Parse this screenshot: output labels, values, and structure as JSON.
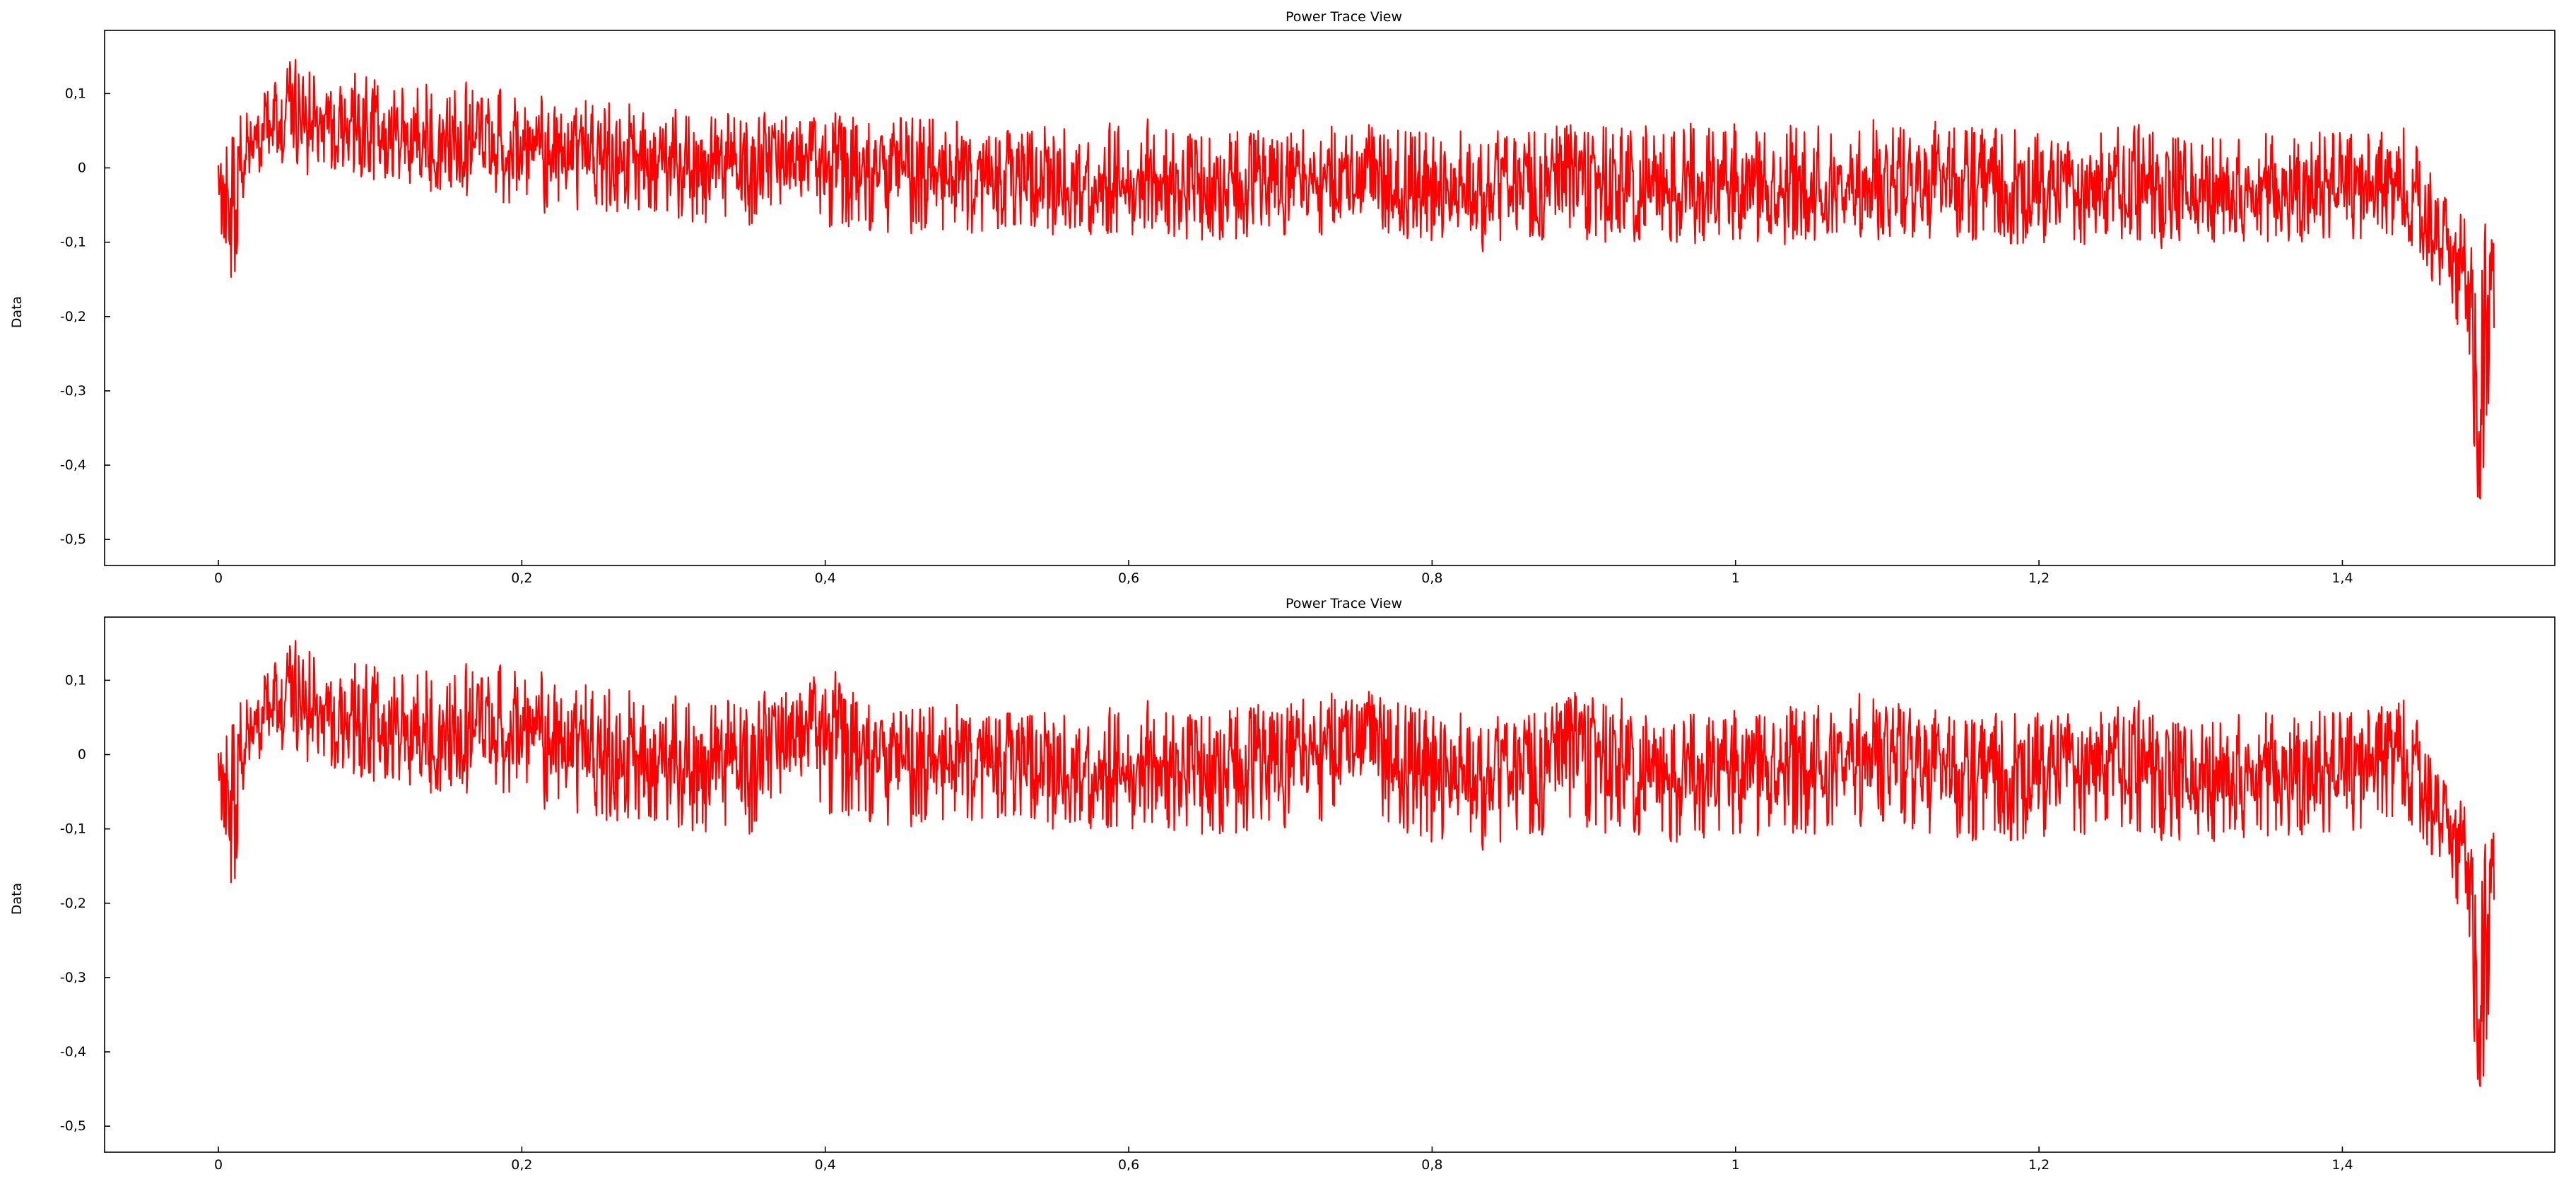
{
  "chart_data": [
    {
      "type": "line",
      "title": "Power Trace View",
      "xlabel": "",
      "ylabel": "Data",
      "xlim": [
        -0.075,
        1.54
      ],
      "ylim": [
        -0.535,
        0.185
      ],
      "grid": false,
      "color": "#ff0000",
      "xticks": [
        0,
        0.2,
        0.4,
        0.6,
        0.8,
        1,
        1.2,
        1.4
      ],
      "xtick_labels": [
        "0",
        "0,2",
        "0,4",
        "0,6",
        "0,8",
        "1",
        "1,2",
        "1,4"
      ],
      "yticks": [
        0.1,
        0,
        -0.1,
        -0.2,
        -0.3,
        -0.4,
        -0.5
      ],
      "ytick_labels": [
        "0,1",
        "0",
        "-0,1",
        "-0,2",
        "-0,3",
        "-0,4",
        "-0,5"
      ],
      "series": [
        {
          "x": [
            0,
            0.01,
            0.02,
            0.04,
            0.06,
            0.08,
            0.1,
            0.12,
            0.15,
            0.2,
            0.25,
            0.3,
            0.35,
            0.4,
            0.45,
            0.5,
            0.55,
            0.6,
            0.65,
            0.7,
            0.75,
            0.8,
            0.85,
            0.9,
            0.95,
            1.0,
            1.05,
            1.1,
            1.15,
            1.2,
            1.25,
            1.3,
            1.35,
            1.4,
            1.44,
            1.46,
            1.47,
            1.48,
            1.485,
            1.49,
            1.495,
            1.5
          ],
          "y": [
            -0.02,
            -0.05,
            0.04,
            0.07,
            0.07,
            0.07,
            0.05,
            0.04,
            0.03,
            0.03,
            0.02,
            0.01,
            0.0,
            0.0,
            -0.01,
            -0.01,
            -0.02,
            -0.02,
            -0.03,
            -0.02,
            -0.02,
            -0.03,
            -0.03,
            -0.02,
            -0.03,
            -0.03,
            -0.03,
            -0.02,
            -0.02,
            -0.03,
            -0.02,
            -0.03,
            -0.03,
            -0.02,
            -0.02,
            -0.08,
            -0.11,
            -0.14,
            -0.22,
            -0.38,
            -0.2,
            -0.1
          ],
          "lower": [
            -0.1,
            -0.16,
            -0.02,
            0.0,
            -0.01,
            0.0,
            -0.02,
            -0.03,
            -0.04,
            -0.05,
            -0.06,
            -0.07,
            -0.08,
            -0.08,
            -0.09,
            -0.09,
            -0.09,
            -0.09,
            -0.1,
            -0.09,
            -0.09,
            -0.1,
            -0.1,
            -0.1,
            -0.1,
            -0.1,
            -0.1,
            -0.09,
            -0.1,
            -0.11,
            -0.1,
            -0.1,
            -0.1,
            -0.1,
            -0.09,
            -0.15,
            -0.2,
            -0.23,
            -0.3,
            -0.5,
            -0.35,
            -0.22
          ],
          "upper": [
            0.09,
            0.05,
            0.12,
            0.15,
            0.14,
            0.15,
            0.12,
            0.12,
            0.11,
            0.1,
            0.09,
            0.08,
            0.07,
            0.07,
            0.07,
            0.06,
            0.06,
            0.06,
            0.05,
            0.05,
            0.06,
            0.05,
            0.05,
            0.06,
            0.06,
            0.06,
            0.06,
            0.07,
            0.06,
            0.05,
            0.06,
            0.05,
            0.05,
            0.05,
            0.06,
            0.0,
            -0.05,
            -0.05,
            -0.1,
            -0.2,
            -0.05,
            -0.05
          ]
        }
      ]
    },
    {
      "type": "line",
      "title": "Power Trace View",
      "xlabel": "",
      "ylabel": "Data",
      "xlim": [
        -0.075,
        1.54
      ],
      "ylim": [
        -0.535,
        0.185
      ],
      "grid": false,
      "color": "#ff0000",
      "xticks": [
        0,
        0.2,
        0.4,
        0.6,
        0.8,
        1,
        1.2,
        1.4
      ],
      "xtick_labels": [
        "0",
        "0,2",
        "0,4",
        "0,6",
        "0,8",
        "1",
        "1,2",
        "1,4"
      ],
      "yticks": [
        0.1,
        0,
        -0.1,
        -0.2,
        -0.3,
        -0.4,
        -0.5
      ],
      "ytick_labels": [
        "0,1",
        "0",
        "-0,1",
        "-0,2",
        "-0,3",
        "-0,4",
        "-0,5"
      ],
      "series": [
        {
          "x": [
            0,
            0.01,
            0.02,
            0.04,
            0.06,
            0.08,
            0.1,
            0.12,
            0.15,
            0.2,
            0.25,
            0.3,
            0.35,
            0.4,
            0.45,
            0.5,
            0.55,
            0.6,
            0.65,
            0.7,
            0.75,
            0.8,
            0.85,
            0.9,
            0.95,
            1.0,
            1.05,
            1.1,
            1.15,
            1.2,
            1.25,
            1.3,
            1.35,
            1.4,
            1.44,
            1.46,
            1.47,
            1.48,
            1.485,
            1.49,
            1.495,
            1.5
          ],
          "y": [
            -0.02,
            -0.06,
            0.04,
            0.08,
            0.07,
            0.06,
            0.04,
            0.03,
            0.02,
            0.04,
            0.0,
            -0.01,
            -0.01,
            0.03,
            -0.02,
            0.0,
            -0.02,
            -0.02,
            -0.02,
            -0.01,
            0.02,
            -0.02,
            -0.03,
            0.01,
            -0.03,
            -0.02,
            -0.01,
            0.01,
            -0.03,
            -0.02,
            0.0,
            -0.03,
            -0.02,
            -0.02,
            0.02,
            -0.06,
            -0.1,
            -0.12,
            -0.22,
            -0.38,
            -0.25,
            -0.1
          ],
          "lower": [
            -0.1,
            -0.19,
            -0.02,
            0.0,
            -0.01,
            -0.02,
            -0.04,
            -0.05,
            -0.06,
            -0.05,
            -0.09,
            -0.1,
            -0.11,
            -0.08,
            -0.1,
            -0.09,
            -0.1,
            -0.1,
            -0.11,
            -0.1,
            -0.08,
            -0.12,
            -0.12,
            -0.1,
            -0.12,
            -0.11,
            -0.11,
            -0.09,
            -0.12,
            -0.12,
            -0.1,
            -0.12,
            -0.11,
            -0.11,
            -0.08,
            -0.14,
            -0.19,
            -0.22,
            -0.32,
            -0.5,
            -0.4,
            -0.2
          ],
          "upper": [
            0.07,
            0.05,
            0.12,
            0.15,
            0.15,
            0.14,
            0.12,
            0.12,
            0.11,
            0.12,
            0.09,
            0.08,
            0.07,
            0.1,
            0.06,
            0.07,
            0.06,
            0.06,
            0.06,
            0.07,
            0.09,
            0.06,
            0.05,
            0.08,
            0.05,
            0.06,
            0.07,
            0.08,
            0.05,
            0.06,
            0.07,
            0.05,
            0.06,
            0.06,
            0.08,
            0.0,
            -0.05,
            -0.05,
            -0.12,
            -0.22,
            -0.1,
            -0.02
          ]
        }
      ]
    }
  ]
}
